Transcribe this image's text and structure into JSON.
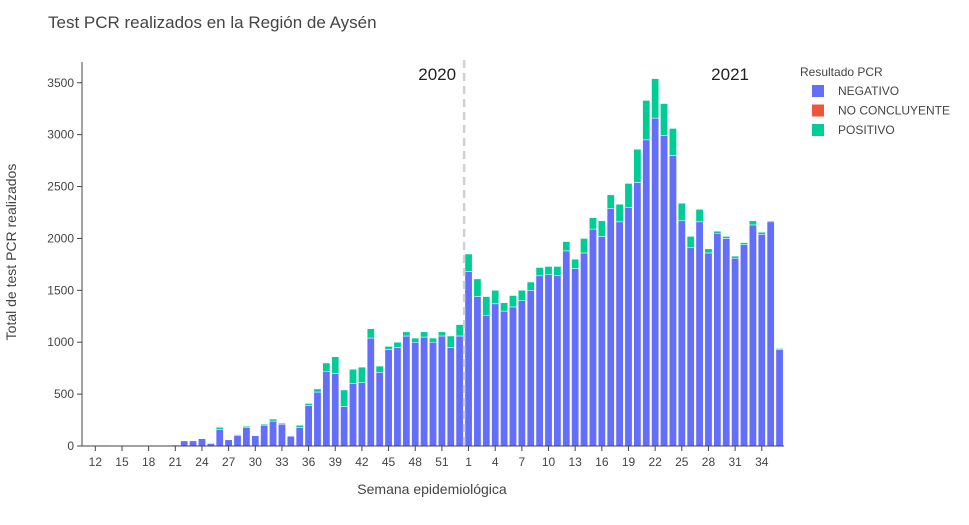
{
  "chart_data": {
    "type": "bar",
    "stacked": true,
    "title": "Test PCR realizados en la Región de Aysén",
    "xlabel": "Semana epidemiológica",
    "ylabel": "Total de test PCR realizados",
    "ylim": [
      0,
      3700
    ],
    "y_ticks": [
      0,
      500,
      1000,
      1500,
      2000,
      2500,
      3000,
      3500
    ],
    "x_tick_labels": [
      "12",
      "15",
      "18",
      "21",
      "24",
      "27",
      "30",
      "33",
      "36",
      "39",
      "42",
      "45",
      "48",
      "51",
      "1",
      "4",
      "7",
      "10",
      "13",
      "16",
      "19",
      "22",
      "25",
      "28",
      "31",
      "34"
    ],
    "grid": false,
    "legend_title": "Resultado PCR",
    "legend_position": "right",
    "year_annotations": [
      "2020",
      "2021"
    ],
    "divider_between": [
      "2020-53",
      "2021-1"
    ],
    "categories": [
      "2020-11",
      "2020-12",
      "2020-13",
      "2020-14",
      "2020-15",
      "2020-16",
      "2020-17",
      "2020-18",
      "2020-19",
      "2020-20",
      "2020-21",
      "2020-22",
      "2020-23",
      "2020-24",
      "2020-25",
      "2020-26",
      "2020-27",
      "2020-28",
      "2020-29",
      "2020-30",
      "2020-31",
      "2020-32",
      "2020-33",
      "2020-34",
      "2020-35",
      "2020-36",
      "2020-37",
      "2020-38",
      "2020-39",
      "2020-40",
      "2020-41",
      "2020-42",
      "2020-43",
      "2020-44",
      "2020-45",
      "2020-46",
      "2020-47",
      "2020-48",
      "2020-49",
      "2020-50",
      "2020-51",
      "2020-52",
      "2020-53",
      "2021-1",
      "2021-2",
      "2021-3",
      "2021-4",
      "2021-5",
      "2021-6",
      "2021-7",
      "2021-8",
      "2021-9",
      "2021-10",
      "2021-11",
      "2021-12",
      "2021-13",
      "2021-14",
      "2021-15",
      "2021-16",
      "2021-17",
      "2021-18",
      "2021-19",
      "2021-20",
      "2021-21",
      "2021-22",
      "2021-23",
      "2021-24",
      "2021-25",
      "2021-26",
      "2021-27",
      "2021-28",
      "2021-29",
      "2021-30",
      "2021-31",
      "2021-32",
      "2021-33",
      "2021-34",
      "2021-35",
      "2021-36"
    ],
    "series": [
      {
        "name": "NEGATIVO",
        "color": "#636efa",
        "values": [
          5,
          5,
          8,
          5,
          5,
          5,
          5,
          5,
          5,
          5,
          10,
          50,
          50,
          70,
          25,
          160,
          60,
          100,
          180,
          100,
          200,
          240,
          210,
          95,
          180,
          390,
          520,
          720,
          700,
          380,
          600,
          610,
          1040,
          710,
          930,
          950,
          1060,
          1000,
          1050,
          1000,
          1060,
          950,
          1060,
          1680,
          1440,
          1260,
          1370,
          1300,
          1340,
          1400,
          1500,
          1640,
          1650,
          1640,
          1880,
          1710,
          1860,
          2090,
          2020,
          2290,
          2160,
          2300,
          2540,
          2950,
          3160,
          2990,
          2800,
          2170,
          1910,
          2160,
          1860,
          2050,
          2000,
          1810,
          1940,
          2130,
          2040,
          2160,
          930
        ]
      },
      {
        "name": "NO CONCLUYENTE",
        "color": "#ef553b",
        "values": [
          0,
          0,
          0,
          0,
          0,
          0,
          0,
          0,
          0,
          0,
          0,
          0,
          0,
          0,
          0,
          0,
          0,
          0,
          0,
          0,
          0,
          0,
          0,
          0,
          0,
          0,
          0,
          0,
          0,
          0,
          0,
          0,
          0,
          0,
          0,
          0,
          0,
          0,
          0,
          0,
          0,
          0,
          0,
          0,
          0,
          0,
          0,
          0,
          0,
          0,
          0,
          0,
          0,
          0,
          0,
          0,
          0,
          0,
          0,
          0,
          0,
          0,
          0,
          0,
          0,
          0,
          0,
          0,
          0,
          0,
          0,
          0,
          0,
          0,
          0,
          0,
          0,
          0,
          0
        ]
      },
      {
        "name": "POSITIVO",
        "color": "#00cc96",
        "values": [
          0,
          0,
          0,
          0,
          0,
          0,
          0,
          0,
          0,
          0,
          5,
          5,
          5,
          5,
          5,
          20,
          5,
          10,
          10,
          5,
          10,
          20,
          10,
          5,
          20,
          20,
          30,
          80,
          160,
          160,
          140,
          150,
          90,
          60,
          30,
          50,
          40,
          40,
          50,
          40,
          40,
          110,
          110,
          170,
          170,
          180,
          130,
          80,
          110,
          100,
          80,
          80,
          80,
          90,
          90,
          90,
          140,
          110,
          150,
          130,
          170,
          230,
          320,
          380,
          380,
          310,
          260,
          170,
          110,
          120,
          40,
          20,
          20,
          20,
          20,
          40,
          20,
          10,
          10
        ]
      }
    ]
  }
}
